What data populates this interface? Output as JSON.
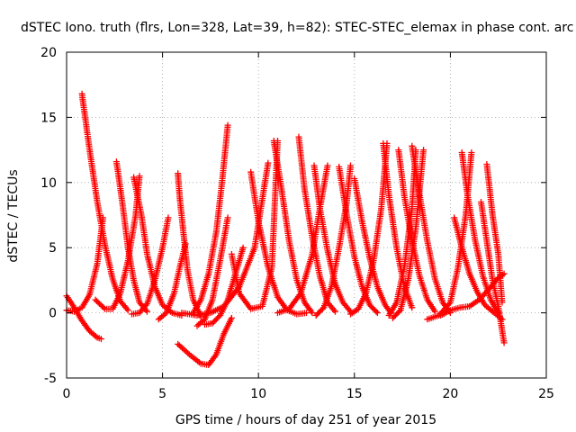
{
  "chart_data": {
    "type": "scatter",
    "title": "dSTEC Iono. truth (flrs, Lon=328, Lat=39, h=82): STEC-STEC_elemax in phase cont. arc",
    "xlabel": "GPS time / hours of day 251 of year 2015",
    "ylabel": "dSTEC  / TECUs",
    "xlim": [
      0,
      25
    ],
    "ylim": [
      -5,
      20
    ],
    "xticks": [
      0,
      5,
      10,
      15,
      20,
      25
    ],
    "yticks": [
      -5,
      0,
      5,
      10,
      15,
      20
    ],
    "grid": true,
    "marker": "+",
    "color": "#ff0000",
    "series": [
      {
        "x": [
          0.8,
          1.2,
          1.6,
          2.0,
          2.4,
          2.8,
          3.2
        ],
        "y": [
          16.8,
          12.5,
          8.5,
          5.2,
          2.6,
          0.9,
          0.2
        ]
      },
      {
        "x": [
          0.0,
          0.4,
          0.8,
          1.2,
          1.6,
          1.8
        ],
        "y": [
          1.3,
          0.4,
          -0.6,
          -1.4,
          -1.9,
          -2.0
        ]
      },
      {
        "x": [
          0.0,
          0.4,
          0.8,
          1.2,
          1.6,
          1.9
        ],
        "y": [
          0.2,
          0.1,
          0.4,
          1.4,
          3.8,
          7.3
        ]
      },
      {
        "x": [
          2.6,
          2.9,
          3.2,
          3.5,
          3.8,
          4.2
        ],
        "y": [
          11.6,
          8.5,
          5.0,
          2.5,
          0.8,
          0.1
        ]
      },
      {
        "x": [
          1.5,
          2.0,
          2.4,
          2.8,
          3.2,
          3.6,
          3.8
        ],
        "y": [
          1.0,
          0.3,
          0.3,
          1.5,
          4.0,
          7.5,
          10.5
        ]
      },
      {
        "x": [
          3.5,
          3.9,
          4.2,
          4.6,
          5.0,
          5.5,
          6.0
        ],
        "y": [
          10.4,
          7.5,
          4.5,
          2.0,
          0.6,
          0.0,
          -0.2
        ]
      },
      {
        "x": [
          3.4,
          3.8,
          4.2,
          4.6,
          5.0,
          5.3
        ],
        "y": [
          -0.1,
          0.0,
          0.7,
          2.5,
          5.0,
          7.3
        ]
      },
      {
        "x": [
          5.8,
          5.9,
          6.1,
          6.3,
          6.6,
          7.0
        ],
        "y": [
          10.7,
          8.8,
          6.0,
          3.3,
          1.0,
          -0.3
        ]
      },
      {
        "x": [
          4.8,
          5.2,
          5.6,
          5.9,
          6.2
        ],
        "y": [
          -0.5,
          0.0,
          1.5,
          3.5,
          5.3
        ]
      },
      {
        "x": [
          5.8,
          6.4,
          7.0,
          7.4,
          7.8,
          8.2,
          8.6
        ],
        "y": [
          -2.4,
          -3.2,
          -3.9,
          -4.0,
          -3.2,
          -1.6,
          -0.4
        ]
      },
      {
        "x": [
          6.8,
          7.2,
          7.6,
          8.0,
          8.4
        ],
        "y": [
          -1.0,
          -0.5,
          1.0,
          4.0,
          7.3
        ]
      },
      {
        "x": [
          8.4,
          8.1,
          7.8,
          7.4,
          7.0,
          6.6
        ],
        "y": [
          14.4,
          10.0,
          6.2,
          3.0,
          1.0,
          0.0
        ]
      },
      {
        "x": [
          7.2,
          7.6,
          8.0,
          8.4,
          8.8,
          9.2
        ],
        "y": [
          -0.9,
          -0.8,
          -0.2,
          1.0,
          3.0,
          5.0
        ]
      },
      {
        "x": [
          6.0,
          6.8,
          7.5,
          8.2,
          9.0,
          9.8,
          10.5
        ],
        "y": [
          0.0,
          -0.2,
          0.0,
          0.5,
          2.0,
          5.0,
          11.5
        ]
      },
      {
        "x": [
          9.6,
          10.0,
          10.5,
          11.0,
          11.5,
          12.0,
          12.5
        ],
        "y": [
          10.8,
          7.0,
          3.5,
          1.2,
          0.2,
          -0.1,
          0.0
        ]
      },
      {
        "x": [
          8.6,
          9.0,
          9.6,
          10.2,
          10.7,
          11.0
        ],
        "y": [
          4.5,
          1.5,
          0.3,
          0.5,
          3.5,
          13.2
        ]
      },
      {
        "x": [
          10.8,
          11.2,
          11.6,
          12.0,
          12.4,
          12.8
        ],
        "y": [
          13.2,
          9.5,
          5.5,
          2.5,
          0.8,
          0.0
        ]
      },
      {
        "x": [
          12.1,
          12.4,
          12.8,
          13.2,
          13.6,
          14.0
        ],
        "y": [
          13.5,
          9.5,
          5.8,
          2.8,
          0.8,
          0.1
        ]
      },
      {
        "x": [
          11.0,
          11.6,
          12.2,
          12.8,
          13.2,
          13.6
        ],
        "y": [
          0.0,
          0.3,
          1.5,
          4.5,
          8.0,
          11.3
        ]
      },
      {
        "x": [
          12.9,
          13.2,
          13.6,
          14.0,
          14.4,
          14.8
        ],
        "y": [
          11.3,
          8.0,
          4.8,
          2.2,
          0.8,
          0.1
        ]
      },
      {
        "x": [
          13.0,
          13.4,
          13.8,
          14.2,
          14.6,
          14.8
        ],
        "y": [
          -0.2,
          0.4,
          2.0,
          5.0,
          8.5,
          11.3
        ]
      },
      {
        "x": [
          14.2,
          14.6,
          15.0,
          15.4,
          15.8,
          16.2
        ],
        "y": [
          11.2,
          7.5,
          4.3,
          2.0,
          0.6,
          0.0
        ]
      },
      {
        "x": [
          14.8,
          15.2,
          15.6,
          16.0,
          16.4,
          16.7
        ],
        "y": [
          -0.1,
          0.3,
          1.5,
          4.0,
          8.0,
          13.0
        ]
      },
      {
        "x": [
          16.5,
          16.8,
          17.2,
          17.6,
          18.0
        ],
        "y": [
          13.0,
          9.0,
          5.0,
          2.0,
          0.4
        ]
      },
      {
        "x": [
          15.0,
          15.4,
          15.8,
          16.2,
          16.6,
          16.9
        ],
        "y": [
          10.3,
          7.0,
          4.2,
          2.0,
          0.6,
          0.0
        ]
      },
      {
        "x": [
          17.0,
          17.4,
          17.8,
          18.2,
          18.6
        ],
        "y": [
          -0.4,
          0.2,
          2.5,
          6.5,
          12.5
        ]
      },
      {
        "x": [
          17.3,
          17.6,
          18.0,
          18.4,
          18.8,
          19.2
        ],
        "y": [
          12.5,
          9.0,
          5.5,
          2.8,
          1.0,
          0.1
        ]
      },
      {
        "x": [
          18.0,
          18.4,
          18.8,
          19.2,
          19.6,
          20.0
        ],
        "y": [
          12.8,
          9.0,
          5.5,
          2.6,
          0.8,
          0.0
        ]
      },
      {
        "x": [
          16.8,
          17.2,
          17.6,
          18.0,
          18.2
        ],
        "y": [
          -0.2,
          0.8,
          3.5,
          8.0,
          12.5
        ]
      },
      {
        "x": [
          18.8,
          19.4,
          20.0,
          20.4,
          20.8,
          21.1
        ],
        "y": [
          -0.5,
          -0.2,
          0.8,
          3.5,
          7.5,
          12.3
        ]
      },
      {
        "x": [
          20.6,
          20.9,
          21.3,
          21.7,
          22.1,
          22.5
        ],
        "y": [
          12.3,
          9.0,
          5.5,
          2.8,
          1.0,
          0.0
        ]
      },
      {
        "x": [
          21.9,
          22.2,
          22.5,
          22.7
        ],
        "y": [
          11.4,
          7.5,
          4.5,
          0.8
        ]
      },
      {
        "x": [
          21.6,
          21.9,
          22.2,
          22.5,
          22.8
        ],
        "y": [
          8.5,
          5.5,
          2.5,
          0.5,
          -2.3
        ]
      },
      {
        "x": [
          19.5,
          20.0,
          20.5,
          21.0,
          21.5,
          22.0,
          22.5,
          22.8
        ],
        "y": [
          -0.2,
          0.2,
          0.4,
          0.5,
          1.0,
          1.8,
          2.7,
          3.0
        ]
      },
      {
        "x": [
          20.2,
          20.6,
          21.0,
          21.4,
          21.8,
          22.2,
          22.7
        ],
        "y": [
          7.3,
          5.0,
          3.0,
          1.6,
          0.6,
          0.1,
          -0.5
        ]
      }
    ]
  }
}
